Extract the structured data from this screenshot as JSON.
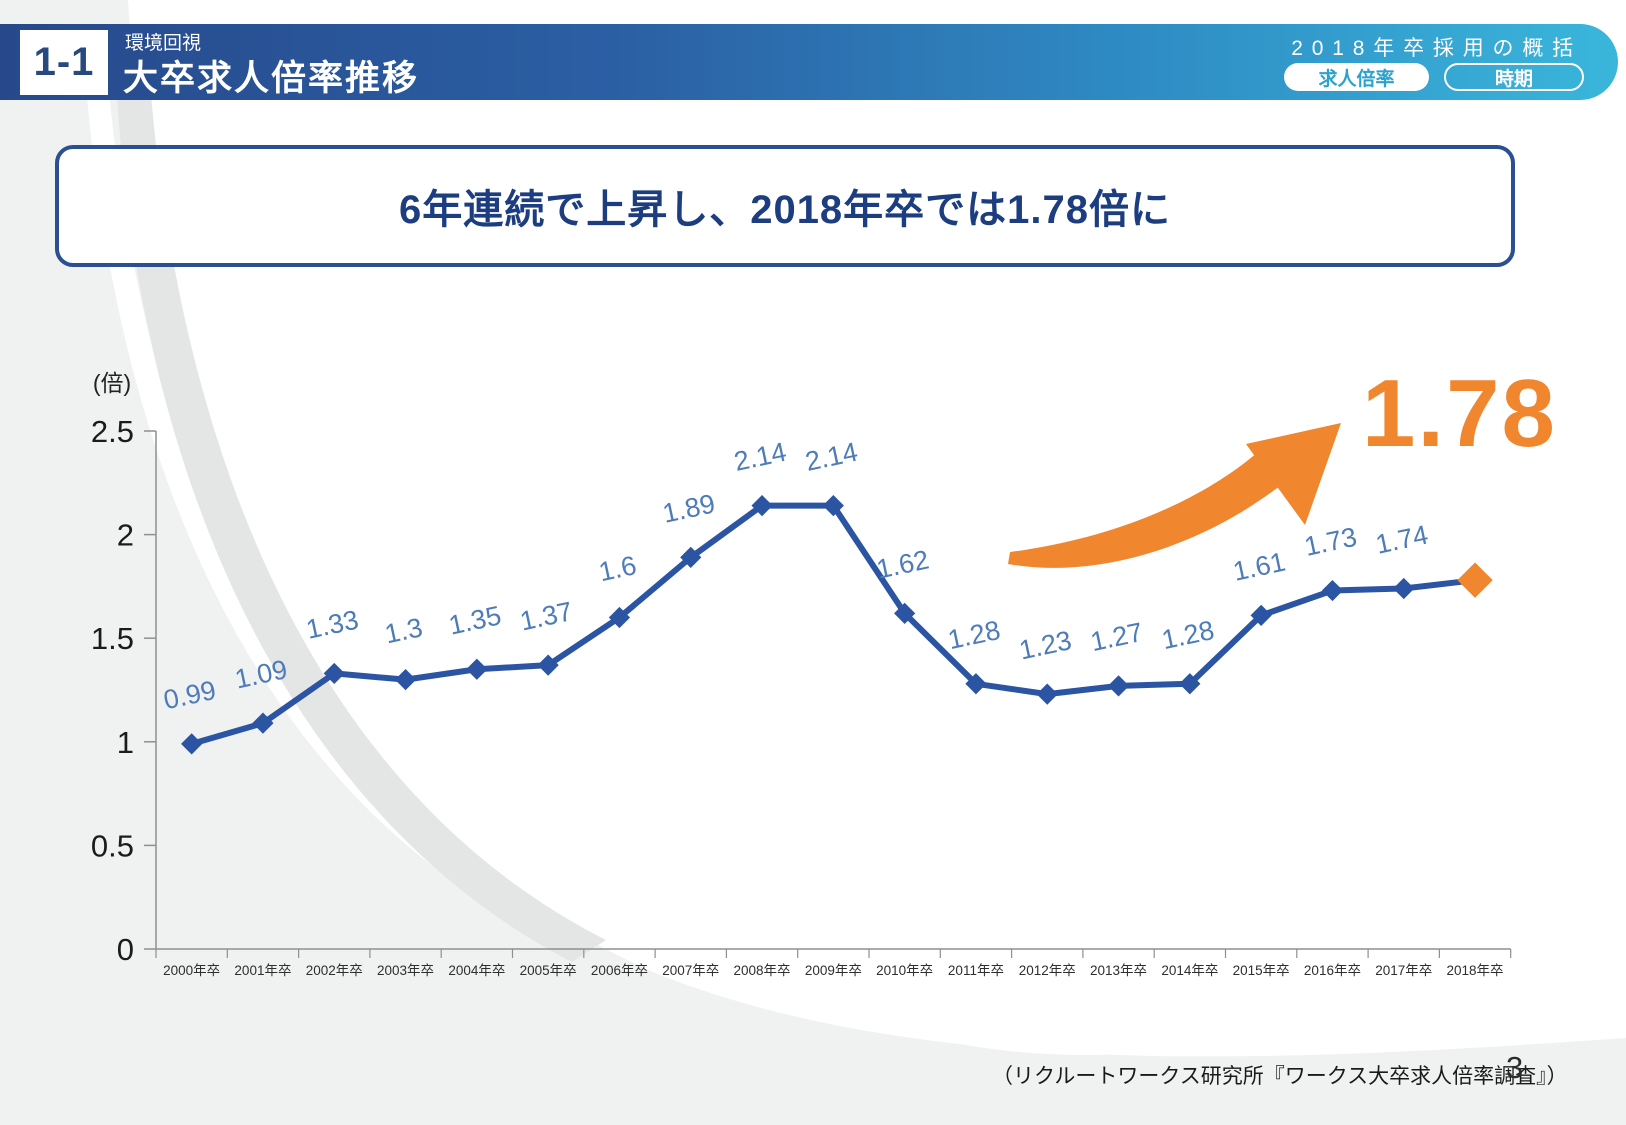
{
  "header": {
    "badge": "1-1",
    "subtitle": "環境回視",
    "title": "大卒求人倍率推移",
    "right_title": "2018年卒採用の概括",
    "pills": [
      {
        "label": "求人倍率",
        "active": true
      },
      {
        "label": "時期",
        "active": false
      }
    ]
  },
  "headline": {
    "text": "6年連続で上昇し、2018年卒では1.78倍に"
  },
  "chart_data": {
    "type": "line",
    "title": "大卒求人倍率推移",
    "unit_label": "(倍)",
    "categories": [
      "2000年卒",
      "2001年卒",
      "2002年卒",
      "2003年卒",
      "2004年卒",
      "2005年卒",
      "2006年卒",
      "2007年卒",
      "2008年卒",
      "2009年卒",
      "2010年卒",
      "2011年卒",
      "2012年卒",
      "2013年卒",
      "2014年卒",
      "2015年卒",
      "2016年卒",
      "2017年卒",
      "2018年卒"
    ],
    "values": [
      0.99,
      1.09,
      1.33,
      1.3,
      1.35,
      1.37,
      1.6,
      1.89,
      2.14,
      2.14,
      1.62,
      1.28,
      1.23,
      1.27,
      1.28,
      1.61,
      1.73,
      1.74,
      1.78
    ],
    "value_labels": [
      "0.99",
      "1.09",
      "1.33",
      "1.3",
      "1.35",
      "1.37",
      "1.6",
      "1.89",
      "2.14",
      "2.14",
      "1.62",
      "1.28",
      "1.23",
      "1.27",
      "1.28",
      "1.61",
      "1.73",
      "1.74",
      ""
    ],
    "ylim": [
      0,
      2.5
    ],
    "y_tick_values": [
      0,
      0.5,
      1,
      1.5,
      2,
      2.5
    ],
    "y_tick_labels": [
      "0",
      "0.5",
      "1",
      "1.5",
      "2",
      "2.5"
    ],
    "grid": false,
    "legend": false,
    "highlight": {
      "index": 18,
      "value": 1.78,
      "callout": "1.78"
    },
    "colors": {
      "line": "#2b55a2",
      "marker": "#2b55a2",
      "value_label": "#4d7cb8",
      "highlight": "#f0862e",
      "axis": "#8f8f8f",
      "tick_label": "#1b1b1b",
      "x_label": "#2e2e2e",
      "unit_label": "#222222"
    }
  },
  "footer": {
    "source": "（リクルートワークス研究所『ワークス大卒求人倍率調査』）",
    "page": "3"
  }
}
